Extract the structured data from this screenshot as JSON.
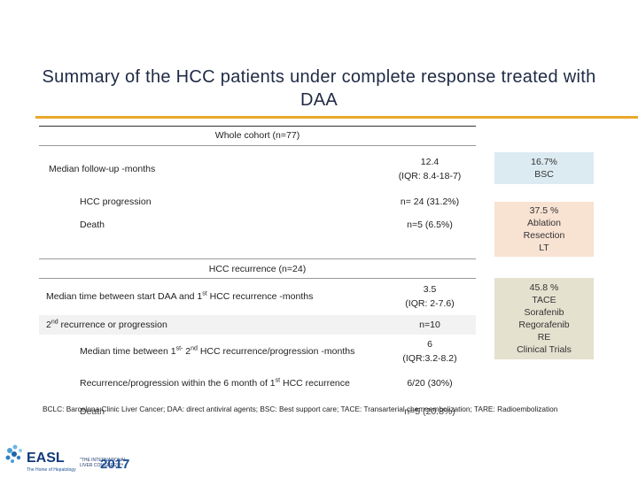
{
  "title": "Summary of the HCC patients under complete response treated with DAA",
  "whole_cohort": {
    "header": "Whole cohort (n=77)",
    "rows": [
      {
        "label": "Median follow-up -months",
        "value_line1": "12.4",
        "value_line2": "(IQR: 8.4-18-7)"
      },
      {
        "label": "HCC progression",
        "value_line1": "n= 24 (31.2%)",
        "value_line2": ""
      },
      {
        "label": "Death",
        "value_line1": "n=5 (6.5%)",
        "value_line2": ""
      }
    ]
  },
  "recurrence": {
    "header": "HCC recurrence (n=24)",
    "row1_label_pre": "Median time between start DAA and 1",
    "row1_label_sup": "st",
    "row1_label_post": " HCC recurrence -months",
    "row1_value_line1": "3.5",
    "row1_value_line2": "(IQR: 2-7.6)",
    "row2_label_pre": "2",
    "row2_label_sup": "nd",
    "row2_label_post": " recurrence or progression",
    "row2_value": "n=10",
    "row3_label_pre": "Median time between 1",
    "row3_sup_a": "st-",
    "row3_label_mid": " 2",
    "row3_sup_b": "nd",
    "row3_label_post": " HCC recurrence/progression -months",
    "row3_value_line1": "6",
    "row3_value_line2": "(IQR:3.2-8.2)",
    "row4_label_pre": "Recurrence/progression within the 6 month of 1",
    "row4_label_sup": "st",
    "row4_label_post": " HCC recurrence",
    "row4_value": "6/20 (30%)",
    "row5_label": "Death",
    "row5_value": "n=5 (20.8%)"
  },
  "side_boxes": [
    {
      "lines": [
        "16.7%",
        "BSC"
      ],
      "color": "#dcebf2"
    },
    {
      "lines": [
        "37.5 %",
        "Ablation",
        "Resection",
        "LT"
      ],
      "color": "#f8e2d2"
    },
    {
      "lines": [
        "45.8 %",
        "TACE",
        "Sorafenib",
        "Regorafenib",
        "RE",
        "Clinical Trials"
      ],
      "color": "#e5e1cf"
    }
  ],
  "footnote": "BCLC: Barcelona Clinic Liver Cancer; DAA: direct antiviral agents; BSC: Best support care; TACE: Transarterial chemoembolization; TARE: Radioembolization",
  "logo": {
    "name": "EASL",
    "tagline": "The Home of Hepatology",
    "ilc_line1": "\"THE INTERNATIONAL",
    "ilc_line2": "LIVER CONGRESS™",
    "year": "2017"
  }
}
